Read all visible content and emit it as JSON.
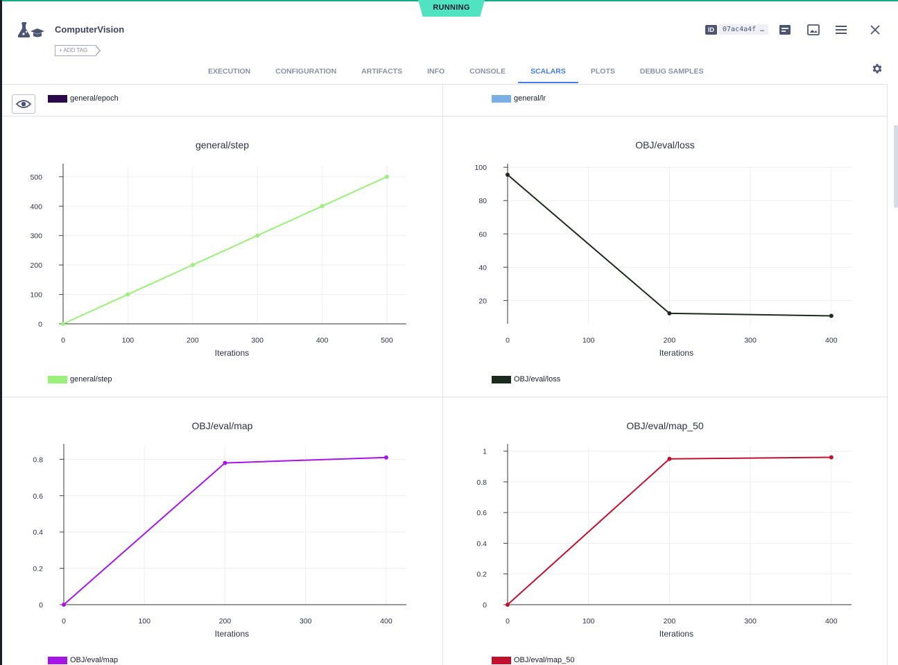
{
  "header": {
    "status": "RUNNING",
    "title": "ComputerVision",
    "add_tag_label": "+ ADD TAG",
    "id_label": "ID",
    "id_value": "07ac4a4f …",
    "icons": [
      "details-icon",
      "image-icon",
      "menu-icon",
      "close-icon"
    ]
  },
  "tabs": [
    {
      "label": "EXECUTION",
      "active": false
    },
    {
      "label": "CONFIGURATION",
      "active": false
    },
    {
      "label": "ARTIFACTS",
      "active": false
    },
    {
      "label": "INFO",
      "active": false
    },
    {
      "label": "CONSOLE",
      "active": false
    },
    {
      "label": "SCALARS",
      "active": true
    },
    {
      "label": "PLOTS",
      "active": false
    },
    {
      "label": "DEBUG SAMPLES",
      "active": false
    }
  ],
  "top_legends": [
    {
      "label": "general/epoch",
      "color": "#2a0a4a"
    },
    {
      "label": "general/lr",
      "color": "#7ab0e6"
    }
  ],
  "chart_data": [
    {
      "type": "line",
      "title": "general/step",
      "xlabel": "Iterations",
      "ylabel": "",
      "x": [
        0,
        100,
        200,
        300,
        400,
        500
      ],
      "series": [
        {
          "name": "general/step",
          "values": [
            0,
            100,
            200,
            300,
            400,
            500
          ],
          "color": "#99f07a"
        }
      ],
      "xlim": [
        0,
        530
      ],
      "ylim": [
        0,
        535
      ],
      "xticks": [
        0,
        100,
        200,
        300,
        400,
        500
      ],
      "yticks": [
        0,
        100,
        200,
        300,
        400,
        500
      ],
      "grid": true,
      "legend": "bottom-left"
    },
    {
      "type": "line",
      "title": "OBJ/eval/loss",
      "xlabel": "Iterations",
      "ylabel": "",
      "x": [
        0,
        200,
        400
      ],
      "series": [
        {
          "name": "OBJ/eval/loss",
          "values": [
            95.5,
            12.3,
            10.8
          ],
          "color": "#1b2a1b"
        }
      ],
      "xlim": [
        0,
        425
      ],
      "ylim": [
        6,
        100.5
      ],
      "xticks": [
        0,
        100,
        200,
        300,
        400
      ],
      "yticks": [
        20,
        40,
        60,
        80,
        100
      ],
      "grid": true,
      "legend": "bottom-left"
    },
    {
      "type": "line",
      "title": "OBJ/eval/map",
      "xlabel": "Iterations",
      "ylabel": "",
      "x": [
        0,
        200,
        400
      ],
      "series": [
        {
          "name": "OBJ/eval/map",
          "values": [
            0,
            0.78,
            0.81
          ],
          "color": "#a614e6"
        }
      ],
      "xlim": [
        0,
        425
      ],
      "ylim": [
        0,
        0.87
      ],
      "xticks": [
        0,
        100,
        200,
        300,
        400
      ],
      "yticks": [
        0,
        0.2,
        0.4,
        0.6,
        0.8
      ],
      "grid": true,
      "legend": "bottom-left"
    },
    {
      "type": "line",
      "title": "OBJ/eval/map_50",
      "xlabel": "Iterations",
      "ylabel": "",
      "x": [
        0,
        200,
        400
      ],
      "series": [
        {
          "name": "OBJ/eval/map_50",
          "values": [
            0,
            0.95,
            0.96
          ],
          "color": "#c0102e"
        }
      ],
      "xlim": [
        0,
        425
      ],
      "ylim": [
        0,
        1.03
      ],
      "xticks": [
        0,
        100,
        200,
        300,
        400
      ],
      "yticks": [
        0,
        0.2,
        0.4,
        0.6,
        0.8,
        1
      ],
      "grid": true,
      "legend": "bottom-left"
    }
  ]
}
